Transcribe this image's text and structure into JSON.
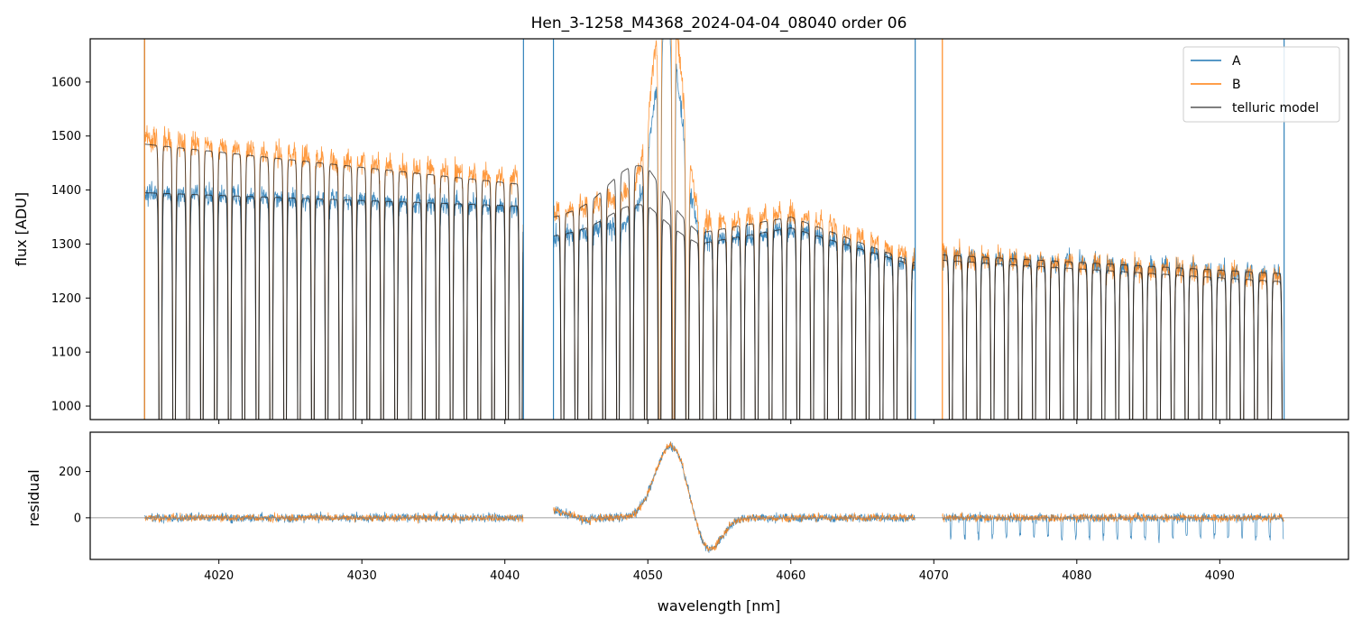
{
  "title": "Hen_3-1258_M4368_2024-04-04_08040  order 06",
  "colors": {
    "A": "#1f77b4",
    "B": "#ff7f0e",
    "telluric": "#555555",
    "zero_line": "#808080"
  },
  "chart_data": [
    {
      "type": "line",
      "panel": "top",
      "ylabel": "flux [ADU]",
      "xlim": [
        4011,
        4099
      ],
      "ylim": [
        975,
        1680
      ],
      "yticks": [
        1000,
        1100,
        1200,
        1300,
        1400,
        1500,
        1600
      ],
      "xticks": [
        4020,
        4030,
        4040,
        4050,
        4060,
        4070,
        4080,
        4090
      ],
      "legend": {
        "position": "top-right",
        "entries": [
          "A",
          "B",
          "telluric model"
        ]
      },
      "segments": [
        [
          4014.8,
          4041.3
        ],
        [
          4043.4,
          4068.7
        ],
        [
          4070.6,
          4094.5
        ]
      ],
      "series": [
        {
          "name": "A",
          "continuum_x": [
            4014.8,
            4041.3,
            4043.4,
            4050,
            4053.5,
            4060,
            4068.7,
            4070.6,
            4094.5
          ],
          "continuum_y": [
            1395,
            1370,
            1315,
            1340,
            1300,
            1330,
            1260,
            1280,
            1245
          ]
        },
        {
          "name": "B",
          "continuum_x": [
            4014.8,
            4041.3,
            4043.4,
            4050,
            4053.5,
            4060,
            4068.7,
            4070.6,
            4094.5
          ],
          "continuum_y": [
            1495,
            1420,
            1360,
            1400,
            1330,
            1360,
            1275,
            1280,
            1240
          ]
        },
        {
          "name": "telluric model"
        }
      ]
    },
    {
      "type": "line",
      "panel": "bottom",
      "xlabel": "wavelength [nm]",
      "ylabel": "residual",
      "xlim": [
        4011,
        4099
      ],
      "ylim": [
        -180,
        370
      ],
      "yticks": [
        0,
        200
      ],
      "xticks": [
        4020,
        4030,
        4040,
        4050,
        4060,
        4070,
        4080,
        4090
      ],
      "series": [
        {
          "name": "A"
        },
        {
          "name": "B"
        }
      ],
      "hline": 0
    }
  ],
  "tick_labels": {
    "x": [
      "4020",
      "4030",
      "4040",
      "4050",
      "4060",
      "4070",
      "4080",
      "4090"
    ],
    "y_top": [
      "1000",
      "1100",
      "1200",
      "1300",
      "1400",
      "1500",
      "1600"
    ],
    "y_bottom": [
      "0",
      "200"
    ]
  }
}
